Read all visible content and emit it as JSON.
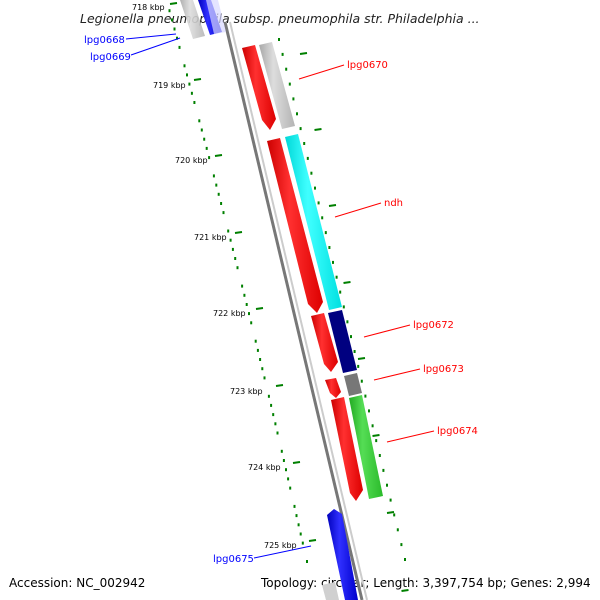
{
  "title": "Legionella pneumophila subsp. pneumophila str. Philadelphia ...",
  "footer": {
    "accession": "Accession: NC_002942",
    "info": "Topology: circular; Length: 3,397,754 bp; Genes: 2,994"
  },
  "ticks": [
    {
      "label": "718 kbp",
      "faded": true
    },
    {
      "label": "719 kbp"
    },
    {
      "label": "720 kbp"
    },
    {
      "label": "721 kbp"
    },
    {
      "label": "722 kbp"
    },
    {
      "label": "723 kbp"
    },
    {
      "label": "724 kbp"
    },
    {
      "label": "725 kbp"
    }
  ],
  "genes": [
    {
      "name": "lpg0668",
      "color": "#0000ff"
    },
    {
      "name": "lpg0669",
      "color": "#0000ff"
    },
    {
      "name": "lpg0670",
      "color": "#ff0000"
    },
    {
      "name": "ndh",
      "color": "#ff0000"
    },
    {
      "name": "lpg0672",
      "color": "#ff0000"
    },
    {
      "name": "lpg0673",
      "color": "#ff0000"
    },
    {
      "name": "lpg0674",
      "color": "#ff0000"
    },
    {
      "name": "lpg0675",
      "color": "#0000ff"
    }
  ],
  "colors": {
    "cds_forward": "#ff0000",
    "cds_reverse": "#0000ff",
    "backbone": "#888888",
    "tick": "#008000",
    "cog_lightgray": "#c8c8c8",
    "cog_cyan": "#00ffff",
    "cog_navy": "#000080",
    "cog_darkgray": "#777777",
    "cog_green": "#33cc33"
  }
}
